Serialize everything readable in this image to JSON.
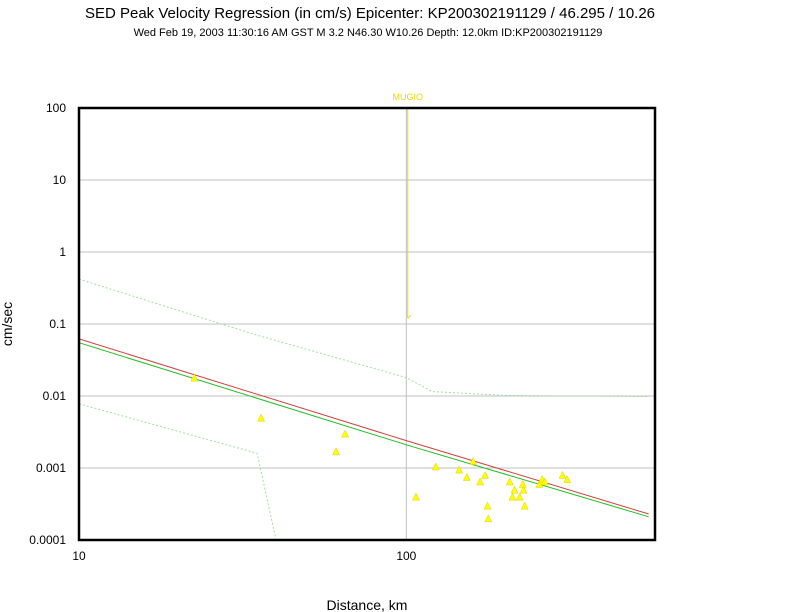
{
  "chart_data": {
    "type": "scatter",
    "title": "SED Peak Velocity Regression (in cm/s) Epicenter: KP200302191129 / 46.295 / 10.26",
    "subtitle": "Wed Feb 19, 2003 11:30:16 AM GST   M 3.2    N46.30 W10.26   Depth: 12.0km   ID:KP200302191129",
    "xlabel": "Distance, km",
    "ylabel": "cm/sec",
    "x_scale": "log",
    "y_scale": "log",
    "xlim": [
      10,
      575
    ],
    "ylim": [
      0.0001,
      100
    ],
    "grid": true,
    "x_ticks": [
      "10",
      "100"
    ],
    "y_ticks": [
      "0.0001",
      "0.001",
      "0.01",
      "0.1",
      "1",
      "10",
      "100"
    ],
    "colors": {
      "points": "#ffff00",
      "point_outline": "#e0d000",
      "regression": "#d04040",
      "fit": "#20c020",
      "bounds": "#a0e0a0",
      "station": "#e8d800",
      "grid": "#c0c0c0"
    },
    "points": [
      {
        "x": 22.5,
        "y": 0.018
      },
      {
        "x": 36,
        "y": 0.005
      },
      {
        "x": 61,
        "y": 0.0017
      },
      {
        "x": 65,
        "y": 0.003
      },
      {
        "x": 107,
        "y": 0.0004
      },
      {
        "x": 123,
        "y": 0.00105
      },
      {
        "x": 145,
        "y": 0.00095
      },
      {
        "x": 153,
        "y": 0.00075
      },
      {
        "x": 160,
        "y": 0.00125
      },
      {
        "x": 168,
        "y": 0.00065
      },
      {
        "x": 174,
        "y": 0.0008
      },
      {
        "x": 177,
        "y": 0.0003
      },
      {
        "x": 178,
        "y": 0.0002
      },
      {
        "x": 207,
        "y": 0.00065
      },
      {
        "x": 211,
        "y": 0.0004
      },
      {
        "x": 214,
        "y": 0.0005
      },
      {
        "x": 222,
        "y": 0.0004
      },
      {
        "x": 227,
        "y": 0.0006
      },
      {
        "x": 228,
        "y": 0.0005
      },
      {
        "x": 230,
        "y": 0.0003
      },
      {
        "x": 255,
        "y": 0.0006
      },
      {
        "x": 260,
        "y": 0.0007
      },
      {
        "x": 265,
        "y": 0.00065
      },
      {
        "x": 300,
        "y": 0.0008
      },
      {
        "x": 310,
        "y": 0.0007
      }
    ],
    "lines": [
      {
        "role": "regression",
        "points": [
          [
            10,
            0.062
          ],
          [
            100,
            0.0024
          ],
          [
            550,
            0.00023
          ]
        ]
      },
      {
        "role": "fit",
        "points": [
          [
            10,
            0.055
          ],
          [
            100,
            0.0021
          ],
          [
            550,
            0.00021
          ]
        ]
      },
      {
        "role": "upper-bound",
        "points": [
          [
            10,
            0.42
          ],
          [
            35,
            0.07
          ],
          [
            100,
            0.018
          ],
          [
            120,
            0.0115
          ],
          [
            200,
            0.0102
          ],
          [
            550,
            0.0098
          ]
        ]
      },
      {
        "role": "lower-bound",
        "points": [
          [
            10,
            0.0078
          ],
          [
            35,
            0.0016
          ],
          [
            40,
            0.0001
          ]
        ]
      }
    ],
    "station": {
      "name": "MUGIO",
      "x": 101,
      "y_top": 100,
      "y_bottom": 0.12
    }
  }
}
